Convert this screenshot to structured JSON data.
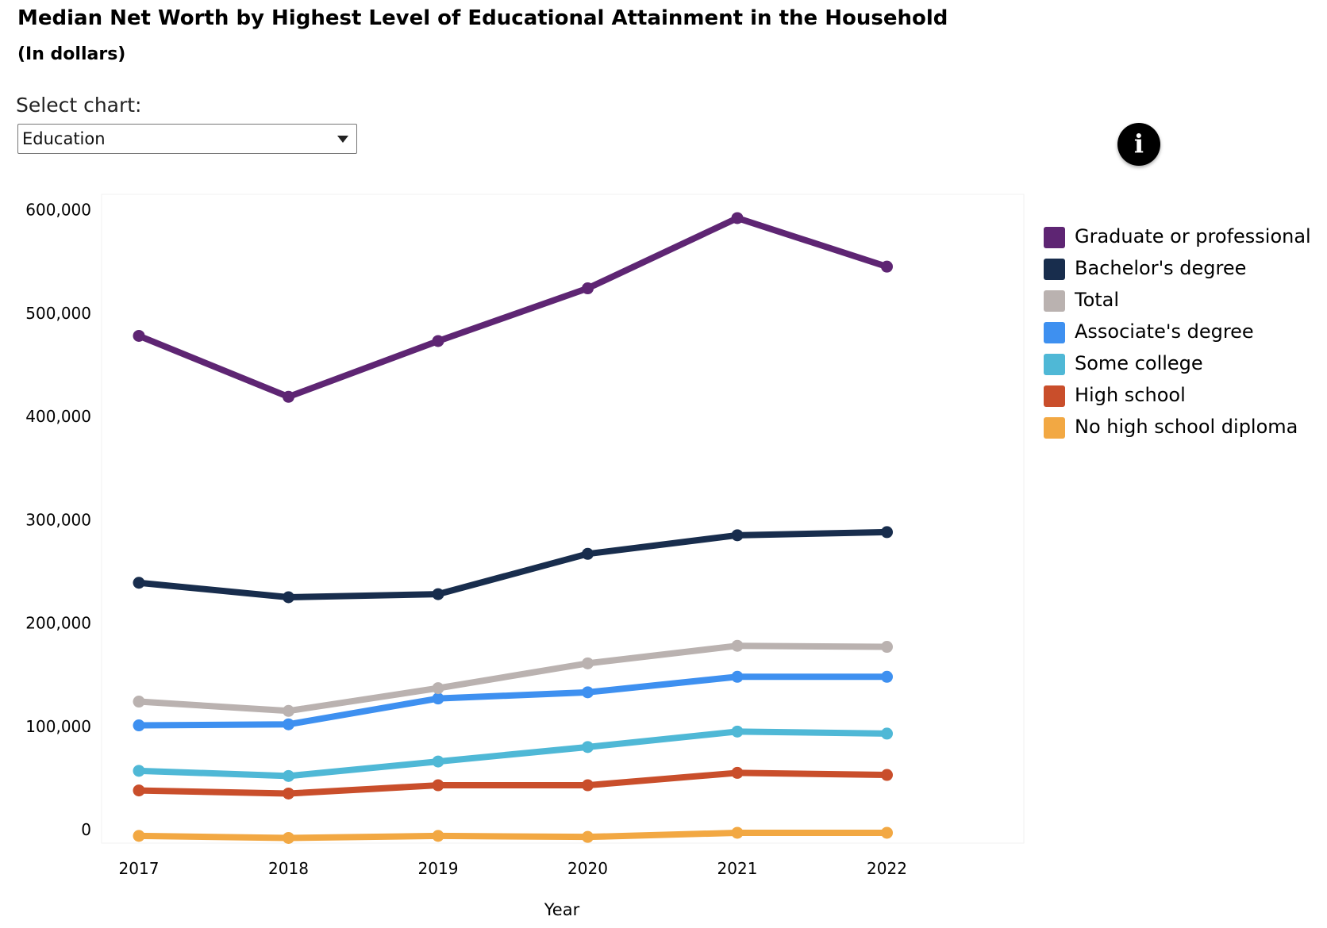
{
  "header": {
    "title": "Median Net Worth by Highest Level of Educational Attainment in the Household",
    "subtitle": "(In dollars)"
  },
  "selector": {
    "label": "Select chart:",
    "selected_value": "Education"
  },
  "info_button": {
    "glyph": "i",
    "icon": "info-icon"
  },
  "chart_data": {
    "type": "line",
    "title": "Median Net Worth by Highest Level of Educational Attainment in the Household",
    "subtitle": "(In dollars)",
    "xlabel": "Year",
    "ylabel": "",
    "x": [
      "2017",
      "2018",
      "2019",
      "2020",
      "2021",
      "2022"
    ],
    "ylim": [
      -13000,
      615000
    ],
    "yticks": [
      0,
      100000,
      200000,
      300000,
      400000,
      500000,
      600000
    ],
    "ytick_labels": [
      "0",
      "100,000",
      "200,000",
      "300,000",
      "400,000",
      "500,000",
      "600,000"
    ],
    "grid": false,
    "legend_position": "right",
    "series": [
      {
        "name": "Graduate or professional",
        "color": "#5E2573",
        "values": [
          478000,
          419000,
          473000,
          524000,
          592000,
          545000
        ]
      },
      {
        "name": "Bachelor's degree",
        "color": "#182D4D",
        "values": [
          239000,
          225000,
          228000,
          267000,
          285000,
          288000
        ]
      },
      {
        "name": "Total",
        "color": "#BAB2B0",
        "values": [
          124000,
          115000,
          137000,
          161000,
          178000,
          177000
        ]
      },
      {
        "name": "Associate's degree",
        "color": "#3E90F0",
        "values": [
          101000,
          102000,
          127000,
          133000,
          148000,
          148000
        ]
      },
      {
        "name": "Some college",
        "color": "#4FB8D6",
        "values": [
          57000,
          52000,
          66000,
          80000,
          95000,
          93000
        ]
      },
      {
        "name": "High school",
        "color": "#C94E2B",
        "values": [
          38000,
          35000,
          43000,
          43000,
          55000,
          53000
        ]
      },
      {
        "name": "No high school diploma",
        "color": "#F2A843",
        "values": [
          -6000,
          -8000,
          -6000,
          -7000,
          -3000,
          -3000
        ]
      }
    ]
  }
}
